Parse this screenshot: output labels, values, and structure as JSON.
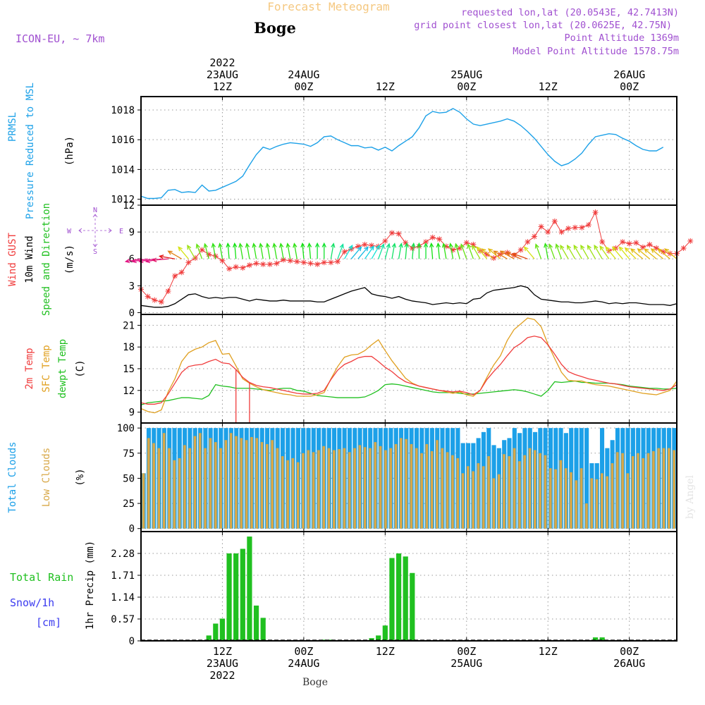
{
  "header": {
    "title_faded": "Forecast Meteogram",
    "location": "Boge",
    "model": "ICON-EU, ~ 7km",
    "requested": "requested lon,lat (20.0543E, 42.7413N)",
    "gridpoint": "grid point closest lon,lat (20.0625E, 42.75N)",
    "point_alt": "Point Altitude 1369m",
    "model_alt": "Model Point Altitude 1578.75m",
    "footer": "Boge",
    "watermark": "by Angel"
  },
  "colors": {
    "pressure": "#1da1e8",
    "gust": "#f03c3c",
    "wind": "#000000",
    "temp2m": "#f03c3c",
    "sfc": "#e0a020",
    "dew": "#20c020",
    "total_cloud": "#1ca0e8",
    "low_cloud": "#d8a848",
    "rain": "#20c020",
    "snow": "#3c3cf0",
    "header_purple": "#a050d0"
  },
  "time_axis": {
    "top": [
      {
        "t": 12,
        "lines": [
          "2022",
          "23AUG",
          "12Z"
        ]
      },
      {
        "t": 24,
        "lines": [
          "24AUG",
          "00Z"
        ]
      },
      {
        "t": 36,
        "lines": [
          "12Z"
        ]
      },
      {
        "t": 48,
        "lines": [
          "25AUG",
          "00Z"
        ]
      },
      {
        "t": 60,
        "lines": [
          "12Z"
        ]
      },
      {
        "t": 72,
        "lines": [
          "26AUG",
          "00Z"
        ]
      }
    ],
    "bottom": [
      {
        "t": 12,
        "lines": [
          "12Z",
          "23AUG",
          "2022"
        ]
      },
      {
        "t": 24,
        "lines": [
          "00Z",
          "24AUG"
        ]
      },
      {
        "t": 36,
        "lines": [
          "12Z"
        ]
      },
      {
        "t": 48,
        "lines": [
          "00Z",
          "25AUG"
        ]
      },
      {
        "t": 60,
        "lines": [
          "12Z"
        ]
      },
      {
        "t": 72,
        "lines": [
          "00Z",
          "26AUG"
        ]
      }
    ]
  },
  "chart_data": [
    {
      "type": "line",
      "ylabel": [
        "PRMSL",
        "Pressure Reduced to MSL",
        "(hPa)"
      ],
      "yticks": [
        "1012",
        "1014",
        "1016",
        "1018"
      ],
      "ylim": [
        1011.6,
        1018.9
      ],
      "grid": true,
      "series": [
        {
          "values": [
            1012.2,
            1012.05,
            1012.05,
            1012.1,
            1012.6,
            1012.65,
            1012.45,
            1012.5,
            1012.45,
            1012.95,
            1012.55,
            1012.6,
            1012.8,
            1013.0,
            1013.2,
            1013.55,
            1014.3,
            1015.0,
            1015.5,
            1015.35,
            1015.55,
            1015.7,
            1015.8,
            1015.75,
            1015.7,
            1015.55,
            1015.8,
            1016.2,
            1016.25,
            1016.0,
            1015.8,
            1015.6,
            1015.6,
            1015.45,
            1015.5,
            1015.3,
            1015.5,
            1015.25,
            1015.6,
            1015.9,
            1016.2,
            1016.8,
            1017.6,
            1017.9,
            1017.8,
            1017.85,
            1018.1,
            1017.85,
            1017.4,
            1017.05,
            1016.95,
            1017.05,
            1017.15,
            1017.25,
            1017.4,
            1017.25,
            1016.95,
            1016.55,
            1016.1,
            1015.55,
            1015.0,
            1014.55,
            1014.25,
            1014.4,
            1014.7,
            1015.1,
            1015.7,
            1016.2,
            1016.3,
            1016.4,
            1016.35,
            1016.1,
            1015.9,
            1015.6,
            1015.35,
            1015.25,
            1015.25,
            1015.5
          ]
        }
      ]
    },
    {
      "type": "line",
      "ylabel": [
        "Wind GUST",
        "10m Wind",
        "Speed and Direction",
        "(m/s)"
      ],
      "yticks": [
        "0",
        "3",
        "6",
        "9",
        "12"
      ],
      "ylim": [
        -0.2,
        12.0
      ],
      "grid": true,
      "compass": [
        "N",
        "W",
        "E",
        "S"
      ],
      "series": [
        {
          "name": "Wind GUST",
          "values": [
            2.6,
            1.8,
            1.4,
            1.2,
            2.4,
            4.1,
            4.5,
            5.6,
            6.1,
            7.0,
            6.5,
            6.3,
            5.8,
            4.9,
            5.1,
            5.0,
            5.3,
            5.5,
            5.4,
            5.4,
            5.5,
            5.9,
            5.8,
            5.7,
            5.6,
            5.5,
            5.4,
            5.6,
            5.6,
            5.7,
            6.8,
            7.1,
            7.4,
            7.6,
            7.5,
            7.4,
            8.0,
            8.9,
            8.8,
            7.8,
            7.2,
            7.4,
            7.9,
            8.4,
            8.2,
            7.4,
            7.0,
            7.2,
            7.8,
            7.6,
            6.9,
            6.5,
            6.1,
            6.5,
            6.7,
            6.4,
            7.0,
            7.9,
            8.5,
            9.6,
            9.0,
            10.2,
            9.0,
            9.4,
            9.5,
            9.5,
            9.8,
            11.2,
            7.9,
            6.9,
            7.2,
            7.9,
            7.7,
            7.8,
            7.3,
            7.6,
            7.2,
            6.8,
            6.6,
            6.6,
            7.2,
            8.0
          ]
        },
        {
          "name": "10m Wind",
          "values": [
            0.8,
            0.7,
            0.6,
            0.6,
            0.7,
            1.0,
            1.5,
            2.0,
            2.1,
            1.8,
            1.6,
            1.7,
            1.6,
            1.7,
            1.7,
            1.5,
            1.3,
            1.5,
            1.4,
            1.3,
            1.3,
            1.4,
            1.3,
            1.3,
            1.3,
            1.3,
            1.2,
            1.2,
            1.5,
            1.8,
            2.1,
            2.4,
            2.6,
            2.8,
            2.1,
            1.9,
            1.8,
            1.6,
            1.8,
            1.5,
            1.3,
            1.2,
            1.1,
            0.9,
            1.0,
            1.1,
            1.0,
            1.1,
            1.0,
            1.5,
            1.6,
            2.2,
            2.5,
            2.6,
            2.7,
            2.8,
            3.0,
            2.8,
            2.0,
            1.5,
            1.4,
            1.3,
            1.2,
            1.2,
            1.1,
            1.1,
            1.2,
            1.3,
            1.2,
            1.0,
            1.1,
            1.0,
            1.1,
            1.1,
            1.0,
            0.9,
            0.9,
            0.9,
            0.8,
            1.0
          ]
        },
        {
          "name": "direction_deg",
          "values": [
            80,
            80,
            80,
            80,
            85,
            100,
            120,
            140,
            150,
            160,
            165,
            170,
            170,
            175,
            175,
            170,
            170,
            170,
            170,
            170,
            170,
            170,
            170,
            170,
            175,
            175,
            180,
            180,
            190,
            200,
            210,
            220,
            220,
            215,
            210,
            200,
            195,
            190,
            190,
            185,
            185,
            180,
            180,
            175,
            175,
            170,
            170,
            165,
            160,
            160,
            150,
            140,
            130,
            130,
            120,
            120,
            115,
            110,
            140,
            160,
            170,
            160,
            160,
            150,
            150,
            150,
            150,
            150,
            150,
            145,
            140,
            140,
            140,
            135,
            130,
            130,
            130,
            130,
            130,
            130
          ]
        }
      ]
    },
    {
      "type": "line",
      "ylabel": [
        "2m Temp",
        "SFC Temp",
        "dewpt Temp",
        "(C)"
      ],
      "yticks": [
        "9",
        "12",
        "15",
        "18",
        "21"
      ],
      "ylim": [
        7.5,
        22.5
      ],
      "grid": true,
      "series": [
        {
          "name": "2m Temp",
          "values": [
            10.3,
            10.1,
            10.1,
            10.3,
            11.5,
            13.0,
            14.5,
            15.3,
            15.5,
            15.6,
            16.0,
            16.3,
            15.8,
            15.7,
            14.9,
            13.8,
            13.1,
            12.7,
            12.5,
            12.4,
            12.2,
            12.0,
            11.8,
            11.6,
            11.5,
            11.5,
            11.6,
            12.0,
            13.5,
            14.8,
            15.6,
            16.0,
            16.5,
            16.7,
            16.7,
            16.0,
            15.2,
            14.6,
            13.8,
            13.2,
            12.9,
            12.6,
            12.4,
            12.2,
            12.0,
            11.9,
            11.8,
            11.9,
            11.7,
            11.4,
            12.0,
            13.5,
            14.6,
            15.6,
            16.8,
            17.9,
            18.5,
            19.3,
            19.5,
            19.3,
            18.3,
            17.0,
            15.6,
            14.6,
            14.2,
            13.9,
            13.6,
            13.4,
            13.2,
            13.0,
            12.9,
            12.7,
            12.5,
            12.4,
            12.3,
            12.2,
            12.1,
            12.0,
            12.2,
            12.8
          ]
        },
        {
          "name": "SFC Temp",
          "values": [
            9.5,
            9.1,
            8.9,
            9.3,
            11.8,
            13.6,
            16.0,
            17.2,
            17.7,
            18.0,
            18.6,
            18.9,
            17.0,
            17.1,
            15.4,
            13.6,
            13.0,
            12.5,
            12.1,
            11.9,
            11.7,
            11.5,
            11.4,
            11.2,
            11.2,
            11.2,
            11.4,
            11.7,
            13.6,
            15.3,
            16.6,
            16.9,
            17.0,
            17.5,
            18.3,
            19.0,
            17.5,
            16.1,
            14.9,
            13.7,
            13.0,
            12.6,
            12.4,
            12.2,
            12.0,
            11.8,
            11.6,
            11.8,
            11.4,
            11.2,
            12.0,
            13.8,
            15.5,
            16.8,
            18.9,
            20.4,
            21.2,
            22.0,
            21.8,
            20.8,
            18.4,
            16.4,
            14.5,
            13.4,
            13.3,
            13.3,
            13.0,
            12.8,
            12.7,
            12.6,
            12.4,
            12.2,
            12.0,
            11.8,
            11.6,
            11.5,
            11.4,
            11.7,
            12.0,
            13.3
          ]
        },
        {
          "name": "dewpt Temp",
          "values": [
            10.0,
            10.3,
            10.4,
            10.5,
            10.6,
            10.8,
            11.0,
            11.0,
            10.9,
            10.8,
            11.3,
            12.8,
            12.6,
            12.5,
            12.3,
            12.3,
            12.3,
            12.2,
            12.1,
            12.0,
            12.2,
            12.3,
            12.3,
            12.0,
            11.9,
            11.6,
            11.3,
            11.2,
            11.1,
            11.0,
            11.0,
            11.0,
            11.0,
            11.1,
            11.5,
            12.0,
            12.8,
            12.9,
            12.8,
            12.6,
            12.4,
            12.2,
            12.0,
            11.8,
            11.7,
            11.7,
            11.7,
            11.6,
            11.5,
            11.5,
            11.6,
            11.7,
            11.8,
            11.9,
            12.0,
            12.1,
            12.0,
            11.8,
            11.5,
            11.2,
            12.0,
            13.2,
            13.1,
            13.2,
            13.3,
            13.1,
            13.1,
            13.0,
            13.0,
            13.0,
            12.9,
            12.8,
            12.6,
            12.5,
            12.4,
            12.3,
            12.3,
            12.2,
            12.2,
            12.3
          ]
        }
      ],
      "extras": {
        "drops_to_t": [
          14,
          16
        ],
        "drop_bottom": 7.5
      }
    },
    {
      "type": "bar",
      "ylabel": [
        "Total Clouds",
        "Low Clouds",
        "(%)"
      ],
      "yticks": [
        "0",
        "25",
        "50",
        "75",
        "100"
      ],
      "ylim": [
        -3,
        105
      ],
      "grid": true,
      "series": [
        {
          "name": "Total Clouds",
          "values": [
            55,
            100,
            100,
            100,
            100,
            100,
            100,
            100,
            100,
            100,
            100,
            100,
            100,
            100,
            100,
            100,
            100,
            100,
            100,
            100,
            100,
            100,
            100,
            100,
            100,
            100,
            100,
            100,
            100,
            100,
            100,
            100,
            100,
            100,
            100,
            100,
            100,
            100,
            100,
            100,
            100,
            100,
            100,
            100,
            100,
            100,
            100,
            100,
            100,
            100,
            100,
            100,
            100,
            100,
            100,
            100,
            100,
            100,
            100,
            100,
            100,
            100,
            85,
            85,
            85,
            90,
            96,
            100,
            83,
            80,
            88,
            90,
            100,
            95,
            100,
            100,
            96,
            100,
            100,
            100,
            100,
            100,
            95,
            100,
            100,
            100,
            100,
            65,
            65,
            100,
            80,
            88,
            100,
            100,
            100,
            100,
            100,
            100,
            100,
            100,
            100,
            100,
            100,
            100
          ]
        },
        {
          "name": "Low Clouds",
          "values": [
            55,
            90,
            85,
            80,
            95,
            80,
            68,
            70,
            83,
            80,
            92,
            95,
            80,
            90,
            86,
            80,
            88,
            95,
            92,
            90,
            88,
            91,
            90,
            86,
            84,
            88,
            80,
            72,
            68,
            70,
            66,
            75,
            78,
            76,
            78,
            82,
            80,
            78,
            79,
            80,
            76,
            80,
            83,
            81,
            80,
            86,
            82,
            78,
            80,
            84,
            90,
            89,
            84,
            80,
            75,
            84,
            77,
            88,
            80,
            76,
            73,
            70,
            55,
            62,
            57,
            65,
            62,
            72,
            50,
            54,
            74,
            72,
            80,
            67,
            73,
            80,
            78,
            75,
            73,
            60,
            59,
            68,
            60,
            56,
            48,
            60,
            25,
            50,
            49,
            55,
            52,
            65,
            76,
            75,
            55,
            72,
            75,
            70,
            75,
            77,
            80,
            80,
            80,
            78
          ]
        }
      ]
    },
    {
      "type": "bar",
      "ylabel": [
        "1hr Precip (mm)"
      ],
      "side_labels": [
        "Total  Rain",
        "Snow/1h",
        "[cm]"
      ],
      "yticks": [
        "0",
        "0.57",
        "1.14",
        "1.71",
        "2.28"
      ],
      "ylim": [
        0,
        2.85
      ],
      "grid": true,
      "series": [
        {
          "name": "Total Rain",
          "values": [
            0,
            0,
            0,
            0,
            0,
            0,
            0,
            0,
            0,
            0,
            0.14,
            0.45,
            0.58,
            2.28,
            2.28,
            2.4,
            2.72,
            0.92,
            0.6,
            0,
            0,
            0,
            0,
            0,
            0,
            0,
            0,
            0.03,
            0.03,
            0,
            0,
            0,
            0,
            0,
            0.07,
            0.14,
            0.4,
            2.16,
            2.28,
            2.2,
            1.77,
            0,
            0,
            0,
            0,
            0,
            0,
            0,
            0,
            0,
            0,
            0,
            0,
            0,
            0,
            0,
            0,
            0,
            0,
            0,
            0,
            0,
            0,
            0,
            0,
            0,
            0,
            0.09,
            0.09,
            0,
            0,
            0,
            0,
            0,
            0,
            0,
            0,
            0,
            0,
            0
          ]
        }
      ]
    }
  ]
}
